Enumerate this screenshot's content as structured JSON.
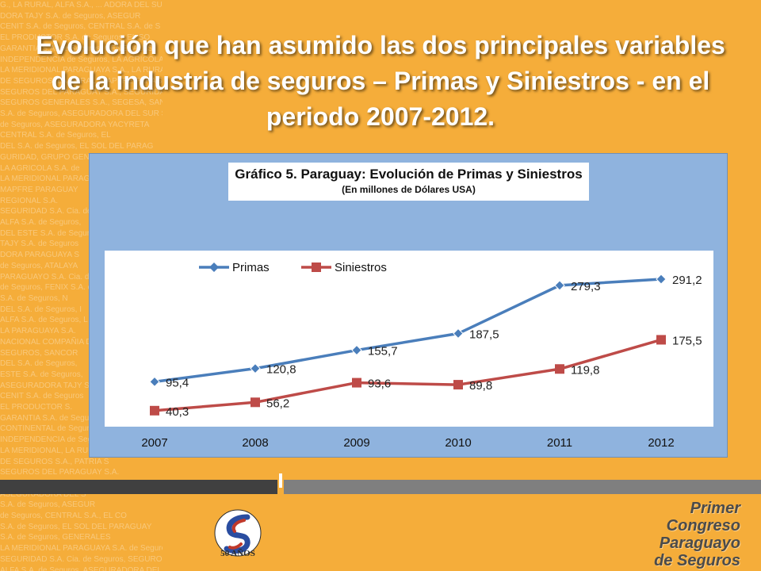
{
  "slide": {
    "title": "Evolución que han asumido las dos principales variables de la industria de seguros – Primas y Siniestros - en el periodo 2007-2012.",
    "branding": {
      "association_caption": "50 AÑOS",
      "congress_lines": [
        "Primer",
        "Congreso",
        "Paraguayo",
        "de Seguros"
      ]
    },
    "watermark_lines": [
      "G., LA RURAL, ALFA S.A., ... ADORA DEL SUR",
      "DORA TAJY S.A. de Seguros, ASEGUR",
      "CENIT S.A. de Seguros, CENTRAL S.A. de S",
      "EL PRODUCTOR S.A. de Seguros, EL SO",
      "GARANTIA S.A. de Seguros, GENERALES",
      "INDEPENDENCIA de Seguros, LA AGRICOLA, LA MERID",
      "LA MERIDIONAL PARAGUAYA S.A., LA RURAL",
      "DE SEGUROS, LA RURAL, MAPFRE PARAGUAY",
      "SEGUROS DEL PARAGUAY S.A., SEGURIDAD",
      "SEGUROS GENERALES S.A., SEGESA, SANCOR",
      "S.A. de Seguros, ASEGURADORA DEL SUR S.A. ASEG",
      "de Seguros, ASEGURADORA YACYRETA",
      "CENTRAL S.A. de Seguros, EL",
      "DEL S.A. de Seguros, EL SOL DEL PARAG",
      "GURIDAD, GRUPO GENERAL",
      "LA AGRICOLA S.A. de",
      "LA MERIDIONAL PARAG",
      "MAPFRE PARAGUAY",
      "REGIONAL S.A.",
      "SEGURIDAD S.A. Cia. de",
      "ALFA S.A. de Seguros,",
      "DEL ESTE S.A. de Seguros",
      "TAJY S.A. de Seguros",
      "DORA PARAGUAYA S",
      "de Seguros, ATALAYA",
      "PARAGUAYO S.A. Cia. d",
      "de Seguros, FENIX S.A. c",
      "S.A. de Seguros, N",
      "DEL S.A. de Seguros, I",
      "ALFA S.A. de Seguros, L",
      "LA PARAGUAYA S.A.",
      "NACIONAL COMPAÑIA DE",
      "SEGUROS, SANCOR",
      "DEL S.A. de Seguros,",
      "ESTE S.A. de Seguros,",
      "ASEGURADORA TAJY S.A.",
      "CENIT S.A. de Seguros",
      "EL PRODUCTOR S.",
      "GARANTIA S.A. de Seguro",
      "CONTINENTAL de Seguros S.A.",
      "INDEPENDENCIA de Seguro",
      "LA MERIDIONAL, LA RURAL",
      "DE SEGUROS S.A., PATRIA S",
      "SEGUROS DEL PARAGUAY S.A.",
      "SEGUROS GENERALES S.A.",
      "ASEGURADORA DEL S",
      "S.A. de Seguros, ASEGUR",
      "de Seguros, CENTRAL S.A., EL CO",
      "S.A. de Seguros, EL SOL DEL PARAGUAY",
      "S.A. de Seguros, GENERALES",
      "LA MERIDIONAL PARAGUAYA S.A. de Seguros",
      "",
      "SEGURIDAD S.A. Cia. de Seguros, SEGUROS CHACO S",
      "ALFA S.A. de Seguros, ASEGURADORA DEL ESTE S.A. de",
      "ADORA PARAGUAYA S.A. de Seguros, ASEGURADORA",
      "de Seguros, ATALAYA S.A. de Seguros, ATLAN"
    ]
  },
  "chart_data": {
    "type": "line",
    "title": "Gráfico 5. Paraguay: Evolución de Primas y Siniestros",
    "subtitle": "(En millones de Dólares USA)",
    "categories": [
      "2007",
      "2008",
      "2009",
      "2010",
      "2011",
      "2012"
    ],
    "series": [
      {
        "name": "Primas",
        "color": "#4a7ebb",
        "marker": "diamond",
        "values": [
          95.4,
          120.8,
          155.7,
          187.5,
          279.3,
          291.2
        ],
        "labels": [
          "95,4",
          "120,8",
          "155,7",
          "187,5",
          "279,3",
          "291,2"
        ]
      },
      {
        "name": "Siniestros",
        "color": "#be4b48",
        "marker": "square",
        "values": [
          40.3,
          56.2,
          93.6,
          89.8,
          119.8,
          175.5
        ],
        "labels": [
          "40,3",
          "56,2",
          "93,6",
          "89,8",
          "119,8",
          "175,5"
        ]
      }
    ],
    "xlabel": "",
    "ylabel": "",
    "legend_position": "top-left",
    "grid": false,
    "y_axis_visible": false
  }
}
